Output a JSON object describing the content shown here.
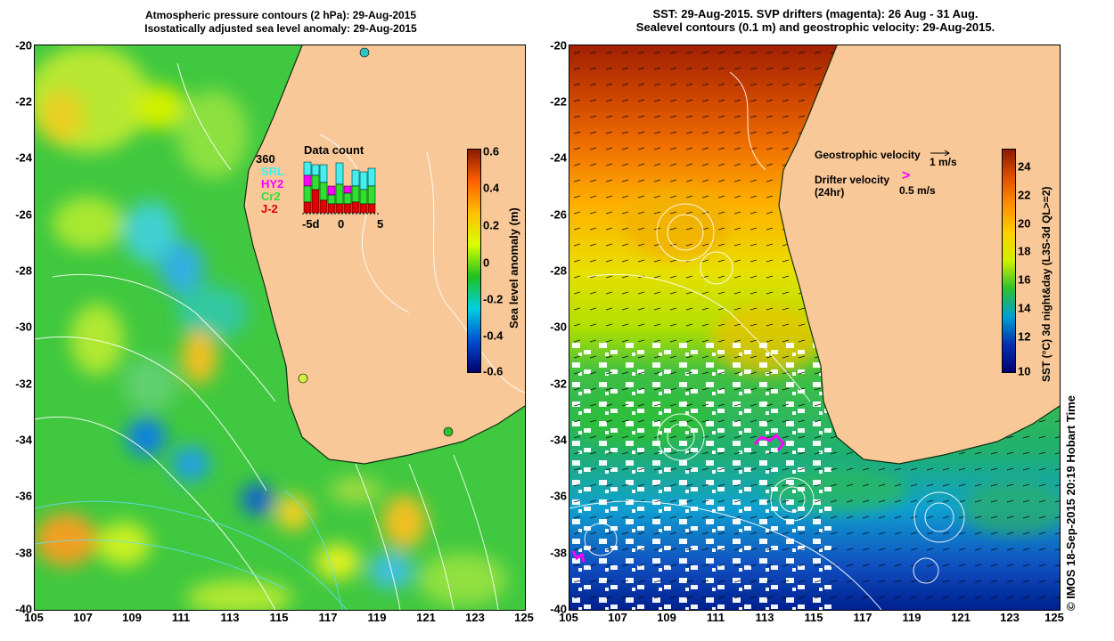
{
  "left_panel": {
    "title_line1": "Atmospheric pressure contours (2 hPa): 29-Aug-2015",
    "title_line2": "Isostatically adjusted sea level anomaly: 29-Aug-2015",
    "colorbar": {
      "label": "Sea level anomaly (m)",
      "ticks": [
        "0.6",
        "0.4",
        "0.2",
        "0",
        "-0.2",
        "-0.4",
        "-0.6"
      ],
      "colors": [
        "#8b1a00",
        "#ff6000",
        "#ffc000",
        "#d8ff00",
        "#20c020",
        "#00d0e0",
        "#0050d0",
        "#000070"
      ]
    },
    "data_count": {
      "title": "Data count",
      "max": "360",
      "missions": [
        {
          "name": "SRL",
          "color": "#40f0f0"
        },
        {
          "name": "HY2",
          "color": "#ff00ff"
        },
        {
          "name": "Cr2",
          "color": "#30e030"
        },
        {
          "name": "J-2",
          "color": "#e00000"
        }
      ],
      "x_ticks": [
        "-5d",
        "0",
        "5"
      ]
    }
  },
  "right_panel": {
    "title_line1": "SST: 29-Aug-2015. SVP drifters (magenta): 26 Aug - 31 Aug.",
    "title_line2": "Sealevel contours (0.1 m) and geostrophic velocity: 29-Aug-2015.",
    "legend": {
      "geo_label": "Geostrophic velocity",
      "geo_scale": "1 m/s",
      "drifter_label_line1": "Drifter velocity",
      "drifter_label_line2": "(24hr)",
      "drifter_scale": "0.5 m/s"
    },
    "colorbar": {
      "label": "SST (°C) 3d night&day (L3S-3d QL>=2)",
      "ticks": [
        "24",
        "22",
        "20",
        "18",
        "16",
        "14",
        "12",
        "10"
      ],
      "colors": [
        "#8b1a00",
        "#e05000",
        "#ff9000",
        "#ffd000",
        "#d0f000",
        "#30c030",
        "#00a0d0",
        "#0030b0",
        "#000070"
      ]
    }
  },
  "axes": {
    "x_ticks": [
      "105",
      "107",
      "109",
      "111",
      "113",
      "115",
      "117",
      "119",
      "121",
      "123",
      "125"
    ],
    "y_ticks": [
      "-20",
      "-22",
      "-24",
      "-26",
      "-28",
      "-30",
      "-32",
      "-34",
      "-36",
      "-38",
      "-40"
    ]
  },
  "credit": "© IMOS 18-Sep-2015 20:19 Hobart Time"
}
